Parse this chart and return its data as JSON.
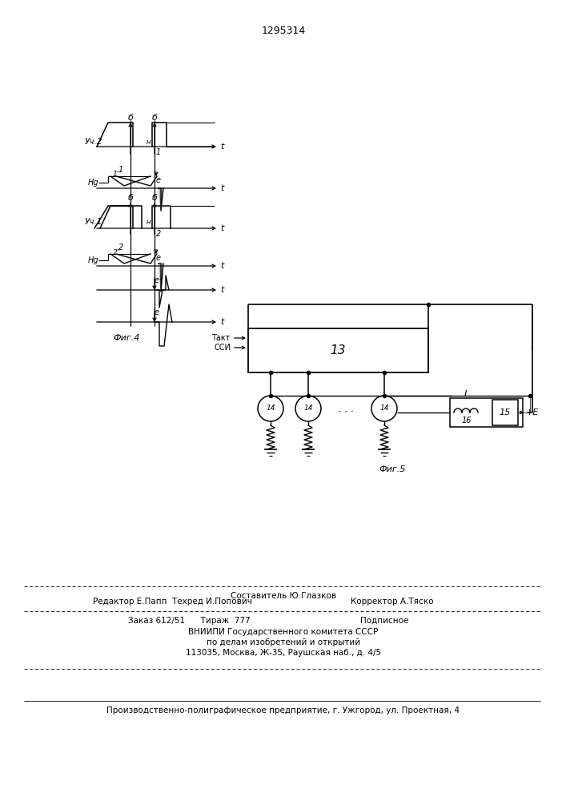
{
  "title": "1295314",
  "bg_color": "#ffffff",
  "footer_lines": [
    "Составитель Ю.Глазков",
    "Редактор Е.Папп  Техред И.Попович",
    "Корректор А.Тяско",
    "Заказ 612/51      Тираж  777",
    "Подписное",
    "ВНИИПИ Государственного комитета СССР",
    "по делам изобретений и открытий",
    "113035, Москва, Ж-35, Раушская наб., д. 4/5",
    "Производственно-полиграфическое предприятие, г. Ужгород, ул. Проектная, 4"
  ]
}
